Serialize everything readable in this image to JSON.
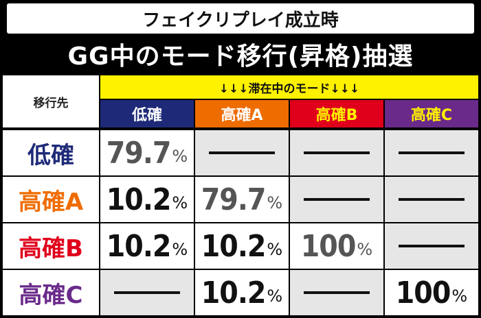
{
  "title_line1": "フェイクリプレイ成立時",
  "title_line2": "GG中のモード移行(昇格)抽選",
  "corner_label": "移行先",
  "current_mode_label": "↓↓↓滞在中のモード↓↓↓",
  "columns": [
    {
      "label": "低確",
      "bg": "#1e2a78",
      "fg": "#ffffff"
    },
    {
      "label": "高確A",
      "bg": "#ef6c00",
      "fg": "#ffffff"
    },
    {
      "label": "高確B",
      "bg": "#e0001b",
      "fg": "#fff200"
    },
    {
      "label": "高確C",
      "bg": "#6a2a8a",
      "fg": "#fff200"
    }
  ],
  "rows": [
    {
      "label": "低確",
      "color": "#1e2a78"
    },
    {
      "label": "高確A",
      "color": "#ef6c00"
    },
    {
      "label": "高確B",
      "color": "#e0001b"
    },
    {
      "label": "高確C",
      "color": "#6a2a8a"
    }
  ],
  "values": [
    [
      {
        "v": "79.7",
        "u": "%",
        "tone": "grey"
      },
      null,
      null,
      null
    ],
    [
      {
        "v": "10.2",
        "u": "%",
        "tone": "dark"
      },
      {
        "v": "79.7",
        "u": "%",
        "tone": "grey"
      },
      null,
      null
    ],
    [
      {
        "v": "10.2",
        "u": "%",
        "tone": "dark"
      },
      {
        "v": "10.2",
        "u": "%",
        "tone": "dark"
      },
      {
        "v": "100",
        "u": "%",
        "tone": "grey"
      },
      null
    ],
    [
      null,
      {
        "v": "10.2",
        "u": "%",
        "tone": "dark"
      },
      null,
      {
        "v": "100",
        "u": "%",
        "tone": "dark"
      }
    ]
  ],
  "empty_cells": [
    [
      0,
      1
    ],
    [
      0,
      2
    ],
    [
      0,
      3
    ],
    [
      1,
      2
    ],
    [
      1,
      3
    ],
    [
      2,
      3
    ],
    [
      3,
      0
    ],
    [
      3,
      2
    ]
  ]
}
